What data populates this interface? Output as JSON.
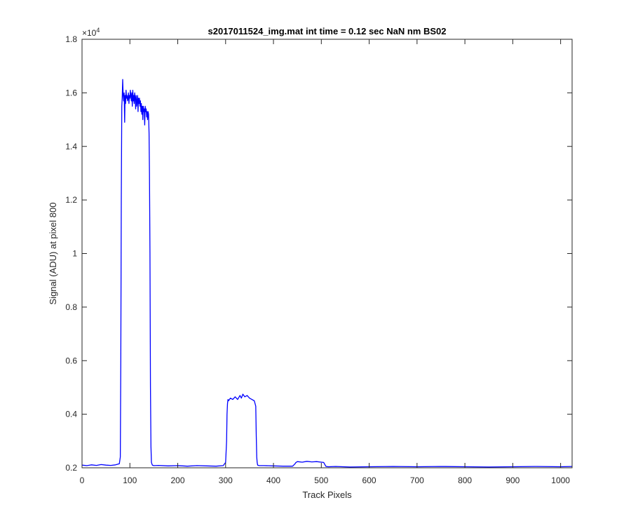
{
  "chart_data": {
    "type": "line",
    "title": "s2017011524_img.mat int time = 0.12 sec  NaN nm BS02",
    "xlabel": "Track Pixels",
    "ylabel": "Signal (ADU) at pixel 800",
    "xlim": [
      0,
      1024
    ],
    "ylim": [
      2000,
      18000
    ],
    "x_ticks": [
      0,
      100,
      200,
      300,
      400,
      500,
      600,
      700,
      800,
      900,
      1000
    ],
    "y_ticks": [
      2000,
      4000,
      6000,
      8000,
      10000,
      12000,
      14000,
      16000,
      18000
    ],
    "y_tick_labels": [
      "0.2",
      "0.4",
      "0.6",
      "0.8",
      "1",
      "1.2",
      "1.4",
      "1.6",
      "1.8"
    ],
    "x_tick_labels": [
      "0",
      "100",
      "200",
      "300",
      "400",
      "500",
      "600",
      "700",
      "800",
      "900",
      "1000"
    ],
    "y_exponent_base": "×10",
    "y_exponent_power": "4",
    "grid": false,
    "series": [
      {
        "color": "#0000ff",
        "x": [
          0,
          10,
          20,
          30,
          40,
          50,
          60,
          70,
          78,
          80,
          81,
          82,
          83,
          84,
          85,
          86,
          87,
          88,
          89,
          90,
          91,
          92,
          93,
          94,
          95,
          96,
          97,
          98,
          99,
          100,
          101,
          102,
          103,
          104,
          105,
          106,
          107,
          108,
          109,
          110,
          111,
          112,
          113,
          114,
          115,
          116,
          117,
          118,
          119,
          120,
          121,
          122,
          123,
          124,
          125,
          126,
          127,
          128,
          129,
          130,
          131,
          132,
          133,
          134,
          135,
          136,
          137,
          138,
          139,
          140,
          141,
          142,
          143,
          144,
          145,
          147,
          150,
          160,
          180,
          200,
          220,
          240,
          260,
          280,
          295,
          300,
          302,
          303,
          304,
          305,
          306,
          310,
          315,
          320,
          325,
          330,
          333,
          336,
          340,
          345,
          350,
          355,
          360,
          363,
          364,
          365,
          366,
          367,
          370,
          380,
          400,
          420,
          440,
          445,
          447,
          450,
          460,
          470,
          480,
          490,
          500,
          505,
          508,
          510,
          515,
          530,
          560,
          600,
          650,
          700,
          750,
          800,
          850,
          900,
          950,
          1000,
          1024
        ],
        "y": [
          2100,
          2080,
          2110,
          2090,
          2120,
          2100,
          2090,
          2110,
          2150,
          2400,
          6000,
          12000,
          15500,
          15800,
          16500,
          15900,
          15700,
          16000,
          14900,
          15900,
          15600,
          16100,
          15800,
          15900,
          15700,
          15800,
          16000,
          15600,
          15900,
          15800,
          16100,
          15900,
          15700,
          16000,
          15500,
          16100,
          15700,
          15900,
          15600,
          16000,
          15800,
          15400,
          15900,
          15500,
          15700,
          15900,
          15300,
          15800,
          15600,
          15800,
          15500,
          15700,
          15300,
          15600,
          15200,
          15500,
          15000,
          15500,
          15300,
          15400,
          14800,
          15500,
          15300,
          15400,
          15100,
          15300,
          15000,
          15300,
          15200,
          14500,
          13000,
          10000,
          5000,
          2800,
          2200,
          2100,
          2080,
          2090,
          2070,
          2080,
          2060,
          2080,
          2070,
          2060,
          2080,
          2200,
          3000,
          4000,
          4400,
          4550,
          4500,
          4600,
          4550,
          4650,
          4550,
          4700,
          4600,
          4750,
          4650,
          4700,
          4600,
          4550,
          4500,
          4300,
          3200,
          2400,
          2200,
          2100,
          2080,
          2080,
          2070,
          2060,
          2060,
          2150,
          2200,
          2230,
          2210,
          2240,
          2220,
          2230,
          2210,
          2200,
          2100,
          2050,
          2040,
          2050,
          2030,
          2040,
          2050,
          2040,
          2050,
          2040,
          2030,
          2040,
          2050,
          2040,
          2050
        ]
      }
    ]
  }
}
